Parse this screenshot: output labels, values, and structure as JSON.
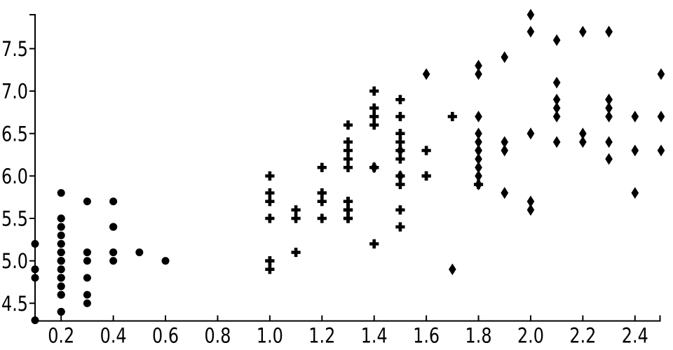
{
  "colors": {
    "background": "#ffffff",
    "foreground": "#000000"
  },
  "chart_data": {
    "type": "scatter",
    "title": "",
    "xlabel": "",
    "ylabel": "",
    "grid": false,
    "legend": "none",
    "marker_color": "#000000",
    "x_axis": {
      "range": [
        0.1,
        2.5
      ],
      "tick_values": [
        0.2,
        0.4,
        0.6,
        0.8,
        1.0,
        1.2,
        1.4,
        1.6,
        1.8,
        2.0,
        2.2,
        2.4
      ],
      "tick_labels": [
        "0.2",
        "0.4",
        "0.6",
        "0.8",
        "1.0",
        "1.2",
        "1.4",
        "1.6",
        "1.8",
        "2.0",
        "2.2",
        "2.4"
      ]
    },
    "y_axis": {
      "range": [
        4.3,
        7.9
      ],
      "tick_values": [
        4.5,
        5.0,
        5.5,
        6.0,
        6.5,
        7.0,
        7.5
      ],
      "tick_labels": [
        "4.5",
        "5.0",
        "5.5",
        "6.0",
        "6.5",
        "7.0",
        "7.5"
      ]
    },
    "series": [
      {
        "name": "series-circle",
        "marker": "circle",
        "color": "#000000",
        "points": [
          [
            0.2,
            5.1
          ],
          [
            0.2,
            4.9
          ],
          [
            0.2,
            4.7
          ],
          [
            0.2,
            4.6
          ],
          [
            0.2,
            5.0
          ],
          [
            0.4,
            5.4
          ],
          [
            0.3,
            4.6
          ],
          [
            0.2,
            5.0
          ],
          [
            0.2,
            4.4
          ],
          [
            0.1,
            4.9
          ],
          [
            0.2,
            5.4
          ],
          [
            0.2,
            4.8
          ],
          [
            0.1,
            4.8
          ],
          [
            0.1,
            4.3
          ],
          [
            0.2,
            5.8
          ],
          [
            0.4,
            5.7
          ],
          [
            0.4,
            5.4
          ],
          [
            0.3,
            5.1
          ],
          [
            0.3,
            5.7
          ],
          [
            0.3,
            5.1
          ],
          [
            0.2,
            5.4
          ],
          [
            0.4,
            5.1
          ],
          [
            0.2,
            4.6
          ],
          [
            0.5,
            5.1
          ],
          [
            0.2,
            4.8
          ],
          [
            0.2,
            5.0
          ],
          [
            0.4,
            5.0
          ],
          [
            0.2,
            5.2
          ],
          [
            0.2,
            5.2
          ],
          [
            0.2,
            4.7
          ],
          [
            0.2,
            4.8
          ],
          [
            0.4,
            5.4
          ],
          [
            0.1,
            5.2
          ],
          [
            0.2,
            5.5
          ],
          [
            0.2,
            4.9
          ],
          [
            0.2,
            5.0
          ],
          [
            0.2,
            5.5
          ],
          [
            0.1,
            4.9
          ],
          [
            0.2,
            4.4
          ],
          [
            0.2,
            5.1
          ],
          [
            0.3,
            5.0
          ],
          [
            0.3,
            4.5
          ],
          [
            0.2,
            4.4
          ],
          [
            0.6,
            5.0
          ],
          [
            0.4,
            5.1
          ],
          [
            0.3,
            4.8
          ],
          [
            0.2,
            5.1
          ],
          [
            0.2,
            4.6
          ],
          [
            0.2,
            5.3
          ],
          [
            0.2,
            5.0
          ]
        ]
      },
      {
        "name": "series-plus",
        "marker": "plus",
        "color": "#000000",
        "points": [
          [
            1.4,
            7.0
          ],
          [
            1.5,
            6.4
          ],
          [
            1.5,
            6.9
          ],
          [
            1.3,
            5.5
          ],
          [
            1.5,
            6.5
          ],
          [
            1.3,
            5.7
          ],
          [
            1.6,
            6.3
          ],
          [
            1.0,
            4.9
          ],
          [
            1.3,
            6.6
          ],
          [
            1.4,
            5.2
          ],
          [
            1.0,
            5.0
          ],
          [
            1.5,
            5.9
          ],
          [
            1.0,
            6.0
          ],
          [
            1.4,
            6.1
          ],
          [
            1.3,
            5.6
          ],
          [
            1.4,
            6.7
          ],
          [
            1.5,
            5.6
          ],
          [
            1.0,
            5.8
          ],
          [
            1.5,
            6.2
          ],
          [
            1.1,
            5.6
          ],
          [
            1.8,
            5.9
          ],
          [
            1.3,
            6.1
          ],
          [
            1.5,
            6.3
          ],
          [
            1.2,
            6.1
          ],
          [
            1.3,
            6.4
          ],
          [
            1.4,
            6.6
          ],
          [
            1.4,
            6.8
          ],
          [
            1.7,
            6.7
          ],
          [
            1.5,
            6.0
          ],
          [
            1.0,
            5.7
          ],
          [
            1.1,
            5.5
          ],
          [
            1.0,
            5.5
          ],
          [
            1.2,
            5.8
          ],
          [
            1.6,
            6.0
          ],
          [
            1.5,
            5.4
          ],
          [
            1.6,
            6.0
          ],
          [
            1.5,
            6.7
          ],
          [
            1.3,
            6.3
          ],
          [
            1.3,
            5.6
          ],
          [
            1.3,
            5.5
          ],
          [
            1.2,
            5.5
          ],
          [
            1.4,
            6.1
          ],
          [
            1.2,
            5.8
          ],
          [
            1.0,
            5.0
          ],
          [
            1.3,
            5.6
          ],
          [
            1.2,
            5.7
          ],
          [
            1.3,
            5.7
          ],
          [
            1.3,
            6.2
          ],
          [
            1.1,
            5.1
          ],
          [
            1.3,
            5.7
          ]
        ]
      },
      {
        "name": "series-diamond",
        "marker": "diamond",
        "color": "#000000",
        "points": [
          [
            2.5,
            6.3
          ],
          [
            1.9,
            5.8
          ],
          [
            2.1,
            7.1
          ],
          [
            1.8,
            6.3
          ],
          [
            2.2,
            6.5
          ],
          [
            2.1,
            7.6
          ],
          [
            1.7,
            4.9
          ],
          [
            1.8,
            7.3
          ],
          [
            1.8,
            6.7
          ],
          [
            2.5,
            7.2
          ],
          [
            2.0,
            6.5
          ],
          [
            1.9,
            6.4
          ],
          [
            2.1,
            6.8
          ],
          [
            2.0,
            5.7
          ],
          [
            2.4,
            5.8
          ],
          [
            2.3,
            6.4
          ],
          [
            1.8,
            6.5
          ],
          [
            2.2,
            7.7
          ],
          [
            2.3,
            7.7
          ],
          [
            1.5,
            6.0
          ],
          [
            2.3,
            6.9
          ],
          [
            2.0,
            5.6
          ],
          [
            2.0,
            7.7
          ],
          [
            1.8,
            6.3
          ],
          [
            2.1,
            6.7
          ],
          [
            1.8,
            7.2
          ],
          [
            1.8,
            6.2
          ],
          [
            1.8,
            6.1
          ],
          [
            2.1,
            6.4
          ],
          [
            1.6,
            7.2
          ],
          [
            1.9,
            7.4
          ],
          [
            2.0,
            7.9
          ],
          [
            2.2,
            6.4
          ],
          [
            1.5,
            6.3
          ],
          [
            1.4,
            6.1
          ],
          [
            2.3,
            7.7
          ],
          [
            2.4,
            6.3
          ],
          [
            1.8,
            6.4
          ],
          [
            1.8,
            6.0
          ],
          [
            2.1,
            6.9
          ],
          [
            2.4,
            6.7
          ],
          [
            2.3,
            6.9
          ],
          [
            1.9,
            5.8
          ],
          [
            2.3,
            6.8
          ],
          [
            2.5,
            6.7
          ],
          [
            2.3,
            6.7
          ],
          [
            1.9,
            6.3
          ],
          [
            2.0,
            6.5
          ],
          [
            2.3,
            6.2
          ],
          [
            1.8,
            5.9
          ]
        ]
      }
    ]
  }
}
